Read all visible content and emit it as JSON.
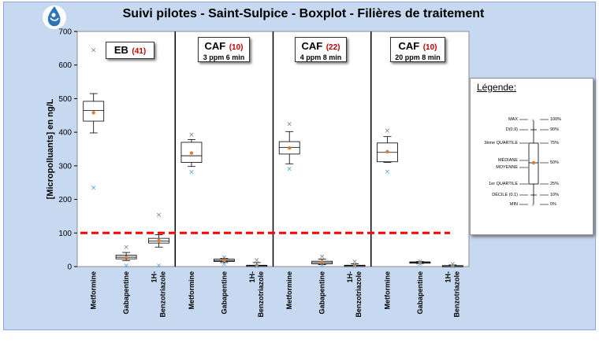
{
  "title": "Suivi pilotes - Saint-Sulpice - Boxplot  - Filières de traitement",
  "logo_icon": "water-drop-logo-icon",
  "chart_data": {
    "type": "boxplot",
    "ylabel": "[Micropolluants] en ng/L",
    "ylim": [
      0,
      700
    ],
    "yticks": [
      0,
      100,
      200,
      300,
      400,
      500,
      600,
      700
    ],
    "threshold": {
      "value": 100,
      "color": "#ff0000",
      "style": "dashed"
    },
    "groups": [
      {
        "name": "EB",
        "n": "(41)",
        "sub": ""
      },
      {
        "name": "CAF",
        "n": "(10)",
        "sub": "3 ppm 6 min"
      },
      {
        "name": "CAF",
        "n": "(22)",
        "sub": "4 ppm 8 min"
      },
      {
        "name": "CAF",
        "n": "(10)",
        "sub": "20 ppm 8 min"
      }
    ],
    "categories": [
      "Metformine",
      "Gabapentine",
      "1H-Benzotriazole"
    ],
    "category_lines": [
      [
        "Metformine"
      ],
      [
        "Gabapentine"
      ],
      [
        "1H-",
        "Benzotriazole"
      ]
    ],
    "boxes": [
      [
        {
          "min": 235,
          "d10": 398,
          "q1": 433,
          "median": 465,
          "q3": 492,
          "d90": 515,
          "max": 645,
          "mean": 458
        },
        {
          "min": 3,
          "d10": 18,
          "q1": 23,
          "median": 28,
          "q3": 34,
          "d90": 42,
          "max": 58,
          "mean": 28
        },
        {
          "min": 3,
          "d10": 58,
          "q1": 70,
          "median": 76,
          "q3": 84,
          "d90": 95,
          "max": 155,
          "mean": 77
        }
      ],
      [
        {
          "min": 282,
          "d10": 298,
          "q1": 310,
          "median": 330,
          "q3": 370,
          "d90": 378,
          "max": 393,
          "mean": 338
        },
        {
          "min": 8,
          "d10": 12,
          "q1": 15,
          "median": 18,
          "q3": 22,
          "d90": 24,
          "max": 28,
          "mean": 18
        },
        {
          "min": 1,
          "d10": 1,
          "q1": 2,
          "median": 3,
          "q3": 4,
          "d90": 12,
          "max": 20,
          "mean": 4
        }
      ],
      [
        {
          "min": 292,
          "d10": 306,
          "q1": 335,
          "median": 355,
          "q3": 372,
          "d90": 402,
          "max": 425,
          "mean": 353
        },
        {
          "min": 5,
          "d10": 6,
          "q1": 8,
          "median": 12,
          "q3": 16,
          "d90": 22,
          "max": 30,
          "mean": 13
        },
        {
          "min": 1,
          "d10": 1,
          "q1": 2,
          "median": 3,
          "q3": 4,
          "d90": 8,
          "max": 15,
          "mean": 3
        }
      ],
      [
        {
          "min": 283,
          "d10": 310,
          "q1": 312,
          "median": 340,
          "q3": 368,
          "d90": 387,
          "max": 405,
          "mean": 342
        },
        {
          "min": 8,
          "d10": 9,
          "q1": 10,
          "median": 12,
          "q3": 14,
          "d90": 15,
          "max": 16,
          "mean": 12
        },
        {
          "min": 1,
          "d10": 1,
          "q1": 1,
          "median": 2,
          "q3": 3,
          "d90": 5,
          "max": 8,
          "mean": 2
        }
      ]
    ]
  },
  "legend": {
    "title": "Légende:",
    "left_labels": [
      "MAX",
      "D(0.9)",
      "3ème QUARTILE",
      "MÉDIANE",
      "MOYENNE",
      "1er QUARTILE",
      "DÉCILE (0.1)",
      "MIN"
    ],
    "right_labels": [
      "100%",
      "90%",
      "75%",
      "50%",
      "25%",
      "10%",
      "0%"
    ]
  }
}
